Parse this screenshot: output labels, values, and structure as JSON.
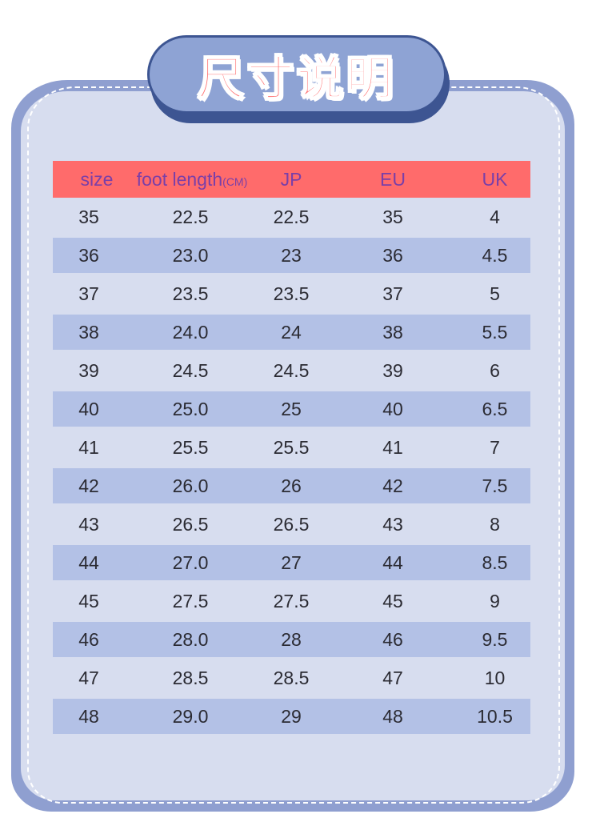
{
  "title": "尺寸说明",
  "colors": {
    "header_bg": "#ff6b6b",
    "header_text": "#7a3fa8",
    "row_shade": "#b3c1e6",
    "card_bg": "#d7ddef",
    "card_border": "#8f9fd0",
    "title_pill": "#8ea3d4",
    "title_text": "#ff6a6a"
  },
  "table": {
    "headers": {
      "size": "size",
      "foot_length": "foot length",
      "foot_length_unit": "(CM)",
      "jp": "JP",
      "eu": "EU",
      "uk": "UK"
    },
    "rows": [
      [
        "35",
        "22.5",
        "22.5",
        "35",
        "4"
      ],
      [
        "36",
        "23.0",
        "23",
        "36",
        "4.5"
      ],
      [
        "37",
        "23.5",
        "23.5",
        "37",
        "5"
      ],
      [
        "38",
        "24.0",
        "24",
        "38",
        "5.5"
      ],
      [
        "39",
        "24.5",
        "24.5",
        "39",
        "6"
      ],
      [
        "40",
        "25.0",
        "25",
        "40",
        "6.5"
      ],
      [
        "41",
        "25.5",
        "25.5",
        "41",
        "7"
      ],
      [
        "42",
        "26.0",
        "26",
        "42",
        "7.5"
      ],
      [
        "43",
        "26.5",
        "26.5",
        "43",
        "8"
      ],
      [
        "44",
        "27.0",
        "27",
        "44",
        "8.5"
      ],
      [
        "45",
        "27.5",
        "27.5",
        "45",
        "9"
      ],
      [
        "46",
        "28.0",
        "28",
        "46",
        "9.5"
      ],
      [
        "47",
        "28.5",
        "28.5",
        "47",
        "10"
      ],
      [
        "48",
        "29.0",
        "29",
        "48",
        "10.5"
      ]
    ]
  }
}
